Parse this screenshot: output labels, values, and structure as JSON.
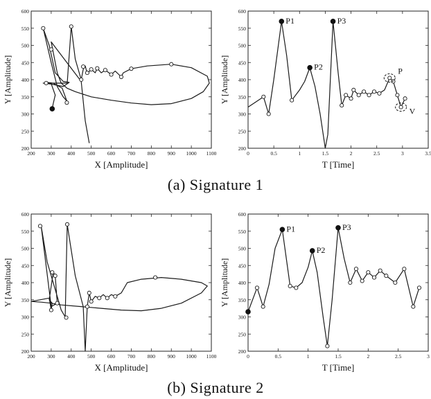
{
  "figure": {
    "caption_a": "(a)  Signature  1",
    "caption_b": "(b)  Signature  2"
  },
  "chart_data": [
    {
      "type": "line",
      "panel": "signature-1-xy",
      "xlabel": "X [Amplitude]",
      "ylabel": "Y [Amplitude]",
      "xlim": [
        200,
        1100
      ],
      "ylim": [
        200,
        600
      ],
      "xticks": [
        200,
        300,
        400,
        500,
        600,
        700,
        800,
        900,
        1000,
        1100
      ],
      "yticks": [
        200,
        250,
        300,
        350,
        400,
        450,
        500,
        550,
        600
      ],
      "series": [
        {
          "points": [
            [
              305,
              315
            ],
            [
              310,
              330
            ],
            [
              320,
              355
            ],
            [
              300,
              388
            ],
            [
              280,
              392
            ],
            [
              310,
              390
            ],
            [
              355,
              375
            ],
            [
              378,
              338
            ],
            [
              360,
              350
            ],
            [
              330,
              380
            ],
            [
              300,
              450
            ],
            [
              260,
              550
            ],
            [
              290,
              500
            ],
            [
              320,
              420
            ],
            [
              360,
              395
            ],
            [
              390,
              392
            ],
            [
              360,
              380
            ],
            [
              300,
              387
            ],
            [
              260,
              390
            ],
            [
              310,
              390
            ],
            [
              380,
              390
            ],
            [
              400,
              555
            ],
            [
              420,
              460
            ],
            [
              450,
              400
            ],
            [
              460,
              430
            ],
            [
              470,
              440
            ],
            [
              480,
              418
            ],
            [
              500,
              430
            ],
            [
              520,
              420
            ],
            [
              530,
              433
            ],
            [
              550,
              420
            ],
            [
              570,
              428
            ],
            [
              600,
              415
            ],
            [
              620,
              425
            ],
            [
              650,
              408
            ],
            [
              660,
              420
            ],
            [
              700,
              432
            ],
            [
              780,
              440
            ],
            [
              900,
              445
            ],
            [
              1000,
              435
            ],
            [
              1080,
              410
            ],
            [
              1090,
              390
            ],
            [
              1060,
              365
            ],
            [
              1000,
              345
            ],
            [
              900,
              330
            ],
            [
              800,
              327
            ],
            [
              700,
              332
            ],
            [
              600,
              340
            ],
            [
              500,
              350
            ],
            [
              420,
              365
            ],
            [
              380,
              375
            ],
            [
              350,
              390
            ],
            [
              330,
              420
            ],
            [
              310,
              480
            ],
            [
              300,
              510
            ],
            [
              450,
              395
            ],
            [
              470,
              280
            ],
            [
              490,
              215
            ]
          ],
          "markers": [
            [
              260,
              550
            ],
            [
              300,
              488
            ],
            [
              275,
              390
            ],
            [
              378,
              333
            ],
            [
              400,
              555
            ],
            [
              450,
              400
            ],
            [
              460,
              438
            ],
            [
              480,
              420
            ],
            [
              500,
              430
            ],
            [
              530,
              433
            ],
            [
              570,
              428
            ],
            [
              600,
              415
            ],
            [
              650,
              408
            ],
            [
              700,
              432
            ],
            [
              900,
              445
            ]
          ],
          "filled_markers": [
            [
              305,
              315
            ]
          ]
        }
      ]
    },
    {
      "type": "line",
      "panel": "signature-1-time",
      "xlabel": "T [Time]",
      "ylabel": "Y [Amplitude]",
      "xlim": [
        0,
        3.5
      ],
      "ylim": [
        200,
        600
      ],
      "xticks": [
        0,
        0.5,
        1,
        1.5,
        2,
        2.5,
        3,
        3.5
      ],
      "xtick_labels": [
        "0",
        "0.5",
        "1",
        "1.5",
        "2",
        "2.5",
        "3",
        "3.5"
      ],
      "yticks": [
        200,
        250,
        300,
        350,
        400,
        450,
        500,
        550,
        600
      ],
      "series": [
        {
          "points": [
            [
              0,
              320
            ],
            [
              0.15,
              335
            ],
            [
              0.3,
              350
            ],
            [
              0.4,
              300
            ],
            [
              0.5,
              400
            ],
            [
              0.65,
              570
            ],
            [
              0.75,
              470
            ],
            [
              0.85,
              340
            ],
            [
              1.0,
              370
            ],
            [
              1.1,
              395
            ],
            [
              1.2,
              435
            ],
            [
              1.3,
              380
            ],
            [
              1.4,
              300
            ],
            [
              1.5,
              200
            ],
            [
              1.55,
              240
            ],
            [
              1.65,
              570
            ],
            [
              1.75,
              420
            ],
            [
              1.82,
              325
            ],
            [
              1.9,
              355
            ],
            [
              2.0,
              345
            ],
            [
              2.05,
              370
            ],
            [
              2.15,
              355
            ],
            [
              2.25,
              365
            ],
            [
              2.35,
              355
            ],
            [
              2.45,
              365
            ],
            [
              2.55,
              360
            ],
            [
              2.65,
              370
            ],
            [
              2.75,
              405
            ],
            [
              2.82,
              395
            ],
            [
              2.9,
              355
            ],
            [
              2.97,
              320
            ],
            [
              3.05,
              345
            ]
          ],
          "markers": [
            [
              0.3,
              350
            ],
            [
              0.4,
              300
            ],
            [
              0.85,
              340
            ],
            [
              1.82,
              325
            ],
            [
              1.9,
              355
            ],
            [
              2.0,
              345
            ],
            [
              2.05,
              370
            ],
            [
              2.15,
              355
            ],
            [
              2.25,
              365
            ],
            [
              2.35,
              355
            ],
            [
              2.45,
              365
            ],
            [
              2.55,
              360
            ],
            [
              2.75,
              405
            ],
            [
              2.82,
              395
            ],
            [
              2.9,
              355
            ],
            [
              2.97,
              320
            ],
            [
              3.05,
              345
            ]
          ],
          "filled_markers": [
            [
              0.65,
              570
            ],
            [
              1.2,
              435
            ],
            [
              1.65,
              570
            ]
          ]
        }
      ],
      "annotations": [
        {
          "text": "P1",
          "x": 0.65,
          "y": 570
        },
        {
          "text": "P2",
          "x": 1.2,
          "y": 435
        },
        {
          "text": "P3",
          "x": 1.65,
          "y": 570
        },
        {
          "text": "P",
          "x": 2.75,
          "y": 405
        },
        {
          "text": "V",
          "x": 2.97,
          "y": 320
        }
      ]
    },
    {
      "type": "line",
      "panel": "signature-2-xy",
      "xlabel": "X [Amplitude]",
      "ylabel": "Y [Amplitude]",
      "xlim": [
        200,
        1100
      ],
      "ylim": [
        200,
        600
      ],
      "xticks": [
        200,
        300,
        400,
        500,
        600,
        700,
        800,
        900,
        1000,
        1100
      ],
      "yticks": [
        200,
        250,
        300,
        350,
        400,
        450,
        500,
        550,
        600
      ],
      "series": [
        {
          "points": [
            [
              200,
              345
            ],
            [
              290,
              355
            ],
            [
              300,
              320
            ],
            [
              305,
              340
            ],
            [
              290,
              350
            ],
            [
              310,
              430
            ],
            [
              320,
              420
            ],
            [
              330,
              340
            ],
            [
              300,
              330
            ],
            [
              250,
              565
            ],
            [
              280,
              460
            ],
            [
              320,
              380
            ],
            [
              350,
              320
            ],
            [
              370,
              300
            ],
            [
              380,
              570
            ],
            [
              420,
              420
            ],
            [
              460,
              330
            ],
            [
              470,
              200
            ],
            [
              480,
              330
            ],
            [
              490,
              370
            ],
            [
              500,
              345
            ],
            [
              520,
              360
            ],
            [
              540,
              355
            ],
            [
              560,
              365
            ],
            [
              580,
              355
            ],
            [
              600,
              365
            ],
            [
              620,
              360
            ],
            [
              650,
              370
            ],
            [
              680,
              400
            ],
            [
              750,
              410
            ],
            [
              850,
              415
            ],
            [
              950,
              410
            ],
            [
              1050,
              400
            ],
            [
              1080,
              390
            ],
            [
              1050,
              370
            ],
            [
              950,
              340
            ],
            [
              850,
              325
            ],
            [
              750,
              318
            ],
            [
              650,
              320
            ],
            [
              550,
              325
            ],
            [
              450,
              330
            ],
            [
              350,
              335
            ],
            [
              300,
              340
            ],
            [
              250,
              343
            ],
            [
              200,
              345
            ]
          ],
          "markers": [
            [
              245,
              565
            ],
            [
              300,
              320
            ],
            [
              305,
              430
            ],
            [
              320,
              420
            ],
            [
              330,
              340
            ],
            [
              375,
              298
            ],
            [
              380,
              570
            ],
            [
              480,
              330
            ],
            [
              490,
              370
            ],
            [
              500,
              345
            ],
            [
              540,
              355
            ],
            [
              580,
              355
            ],
            [
              620,
              360
            ],
            [
              820,
              415
            ]
          ],
          "filled_markers": []
        }
      ]
    },
    {
      "type": "line",
      "panel": "signature-2-time",
      "xlabel": "T [Time]",
      "ylabel": "Y [Amplitude]",
      "xlim": [
        0,
        3
      ],
      "ylim": [
        200,
        600
      ],
      "xticks": [
        0,
        0.5,
        1,
        1.5,
        2,
        2.5,
        3
      ],
      "xtick_labels": [
        "0",
        "0.5",
        "1",
        "1.5",
        "2",
        "2.5",
        "3"
      ],
      "yticks": [
        200,
        250,
        300,
        350,
        400,
        450,
        500,
        550,
        600
      ],
      "series": [
        {
          "points": [
            [
              0,
              315
            ],
            [
              0.15,
              385
            ],
            [
              0.25,
              330
            ],
            [
              0.35,
              395
            ],
            [
              0.45,
              500
            ],
            [
              0.57,
              555
            ],
            [
              0.7,
              390
            ],
            [
              0.8,
              385
            ],
            [
              0.9,
              400
            ],
            [
              1.0,
              445
            ],
            [
              1.07,
              493
            ],
            [
              1.15,
              430
            ],
            [
              1.25,
              300
            ],
            [
              1.32,
              215
            ],
            [
              1.4,
              350
            ],
            [
              1.5,
              560
            ],
            [
              1.6,
              470
            ],
            [
              1.7,
              400
            ],
            [
              1.8,
              440
            ],
            [
              1.9,
              405
            ],
            [
              2.0,
              430
            ],
            [
              2.1,
              415
            ],
            [
              2.2,
              435
            ],
            [
              2.3,
              420
            ],
            [
              2.45,
              400
            ],
            [
              2.6,
              440
            ],
            [
              2.75,
              330
            ],
            [
              2.85,
              385
            ]
          ],
          "markers": [
            [
              0.15,
              385
            ],
            [
              0.25,
              330
            ],
            [
              0.7,
              390
            ],
            [
              0.8,
              385
            ],
            [
              1.32,
              215
            ],
            [
              1.7,
              400
            ],
            [
              1.8,
              440
            ],
            [
              1.9,
              405
            ],
            [
              2.0,
              430
            ],
            [
              2.1,
              415
            ],
            [
              2.2,
              435
            ],
            [
              2.3,
              420
            ],
            [
              2.45,
              400
            ],
            [
              2.6,
              440
            ],
            [
              2.75,
              330
            ],
            [
              2.85,
              385
            ]
          ],
          "filled_markers": [
            [
              0,
              315
            ],
            [
              0.57,
              555
            ],
            [
              1.07,
              493
            ],
            [
              1.5,
              560
            ]
          ]
        }
      ],
      "annotations": [
        {
          "text": "P1",
          "x": 0.57,
          "y": 555
        },
        {
          "text": "P2",
          "x": 1.07,
          "y": 493
        },
        {
          "text": "P3",
          "x": 1.5,
          "y": 560
        }
      ]
    }
  ]
}
